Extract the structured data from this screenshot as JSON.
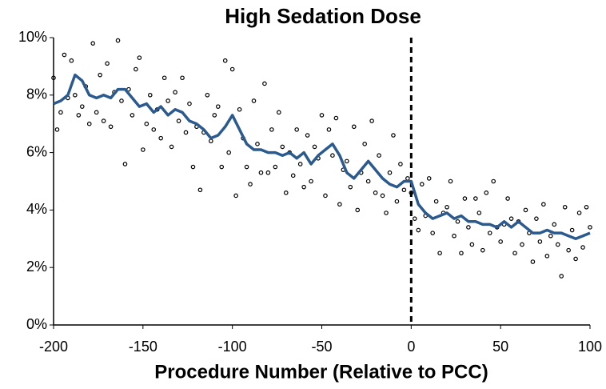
{
  "chart_data": {
    "type": "scatter",
    "title": "High Sedation Dose",
    "x_label": "Procedure Number (Relative to PCC)",
    "xlim": [
      -200,
      100
    ],
    "xticks": [
      -200,
      -150,
      -100,
      -50,
      0,
      50,
      100
    ],
    "ylim": [
      0,
      10
    ],
    "yticks": [
      {
        "value": 0,
        "label": "0%"
      },
      {
        "value": 2,
        "label": "2%"
      },
      {
        "value": 4,
        "label": "4%"
      },
      {
        "value": 6,
        "label": "6%"
      },
      {
        "value": 8,
        "label": "8%"
      },
      {
        "value": 10,
        "label": "10%"
      }
    ],
    "vline": 0,
    "grid": false,
    "series": [
      {
        "type": "scatter",
        "color": "#000000",
        "x": [
          -200,
          -198,
          -196,
          -194,
          -192,
          -190,
          -188,
          -186,
          -184,
          -182,
          -180,
          -178,
          -176,
          -174,
          -172,
          -170,
          -168,
          -166,
          -164,
          -162,
          -160,
          -158,
          -156,
          -154,
          -152,
          -150,
          -148,
          -146,
          -144,
          -142,
          -140,
          -138,
          -136,
          -134,
          -132,
          -130,
          -128,
          -126,
          -124,
          -122,
          -120,
          -118,
          -116,
          -114,
          -112,
          -110,
          -108,
          -106,
          -104,
          -102,
          -100,
          -98,
          -96,
          -94,
          -92,
          -90,
          -88,
          -86,
          -84,
          -82,
          -80,
          -78,
          -76,
          -74,
          -72,
          -70,
          -68,
          -66,
          -64,
          -62,
          -60,
          -58,
          -56,
          -54,
          -52,
          -50,
          -48,
          -46,
          -44,
          -42,
          -40,
          -38,
          -36,
          -34,
          -32,
          -30,
          -28,
          -26,
          -24,
          -22,
          -20,
          -18,
          -16,
          -14,
          -12,
          -10,
          -8,
          -6,
          -4,
          -2,
          0,
          2,
          4,
          6,
          8,
          10,
          12,
          14,
          16,
          18,
          20,
          22,
          24,
          26,
          28,
          30,
          32,
          34,
          36,
          38,
          40,
          42,
          44,
          46,
          48,
          50,
          52,
          54,
          56,
          58,
          60,
          62,
          64,
          66,
          68,
          70,
          72,
          74,
          76,
          78,
          80,
          82,
          84,
          86,
          88,
          90,
          92,
          94,
          96,
          98,
          100
        ],
        "values": [
          8.6,
          6.8,
          7.4,
          9.4,
          7.9,
          9.2,
          8.0,
          7.3,
          7.6,
          8.3,
          7.0,
          9.8,
          7.4,
          8.7,
          7.1,
          9.1,
          6.9,
          8.1,
          9.9,
          7.8,
          5.6,
          8.2,
          7.3,
          8.9,
          9.3,
          6.1,
          7.0,
          8.0,
          6.8,
          7.5,
          6.5,
          8.6,
          7.8,
          6.2,
          8.1,
          7.1,
          8.6,
          6.7,
          7.7,
          5.5,
          6.9,
          4.7,
          6.7,
          8.0,
          6.4,
          7.3,
          7.6,
          5.5,
          9.2,
          6.0,
          8.9,
          4.5,
          7.5,
          6.5,
          5.5,
          4.9,
          7.8,
          6.3,
          5.3,
          8.4,
          5.3,
          6.8,
          5.5,
          7.4,
          6.2,
          4.6,
          6.0,
          5.2,
          6.8,
          5.6,
          4.8,
          6.6,
          5.0,
          6.2,
          5.8,
          7.3,
          4.5,
          6.8,
          5.9,
          7.2,
          4.2,
          5.4,
          5.7,
          4.8,
          6.9,
          4.0,
          5.3,
          6.3,
          5.0,
          7.1,
          4.6,
          5.9,
          4.5,
          3.9,
          5.3,
          6.6,
          4.3,
          5.6,
          4.7,
          5.1,
          4.6,
          3.7,
          3.3,
          4.9,
          3.8,
          5.1,
          3.2,
          4.3,
          2.5,
          3.9,
          4.1,
          5.0,
          3.1,
          3.6,
          2.5,
          4.4,
          3.4,
          2.8,
          4.4,
          3.9,
          2.6,
          4.6,
          3.2,
          5.0,
          3.4,
          2.9,
          3.5,
          4.4,
          3.7,
          2.5,
          3.6,
          2.8,
          4.0,
          3.2,
          2.2,
          3.7,
          2.9,
          4.2,
          2.4,
          3.1,
          3.5,
          2.8,
          1.7,
          4.1,
          2.6,
          3.3,
          2.3,
          3.9,
          2.7,
          4.1,
          3.4
        ]
      },
      {
        "type": "line",
        "color": "#2b5a8f",
        "x": [
          -200,
          -196,
          -192,
          -188,
          -184,
          -180,
          -176,
          -172,
          -168,
          -164,
          -160,
          -156,
          -152,
          -148,
          -144,
          -140,
          -136,
          -132,
          -128,
          -124,
          -120,
          -116,
          -112,
          -108,
          -104,
          -100,
          -96,
          -92,
          -88,
          -84,
          -80,
          -76,
          -72,
          -68,
          -64,
          -60,
          -56,
          -52,
          -48,
          -44,
          -40,
          -36,
          -32,
          -28,
          -24,
          -20,
          -16,
          -12,
          -8,
          -4,
          0,
          4,
          8,
          12,
          16,
          20,
          24,
          28,
          32,
          36,
          40,
          44,
          48,
          52,
          56,
          60,
          64,
          68,
          72,
          76,
          80,
          84,
          88,
          92,
          96,
          100
        ],
        "values": [
          7.7,
          7.8,
          8.0,
          8.7,
          8.5,
          8.0,
          7.9,
          8.0,
          7.9,
          8.2,
          8.2,
          7.9,
          7.6,
          7.7,
          7.4,
          7.6,
          7.3,
          7.5,
          7.4,
          7.1,
          7.0,
          6.8,
          6.5,
          6.6,
          6.9,
          7.3,
          6.8,
          6.3,
          6.1,
          6.1,
          6.0,
          6.0,
          5.9,
          6.0,
          5.8,
          6.0,
          5.6,
          5.9,
          6.1,
          6.3,
          5.9,
          5.3,
          5.1,
          5.4,
          5.7,
          5.4,
          5.1,
          4.9,
          4.8,
          5.0,
          5.0,
          4.2,
          3.9,
          3.7,
          3.8,
          3.9,
          3.7,
          3.8,
          3.6,
          3.6,
          3.5,
          3.5,
          3.4,
          3.6,
          3.4,
          3.6,
          3.4,
          3.2,
          3.2,
          3.3,
          3.2,
          3.2,
          3.1,
          3.0,
          3.1,
          3.2
        ]
      }
    ]
  }
}
